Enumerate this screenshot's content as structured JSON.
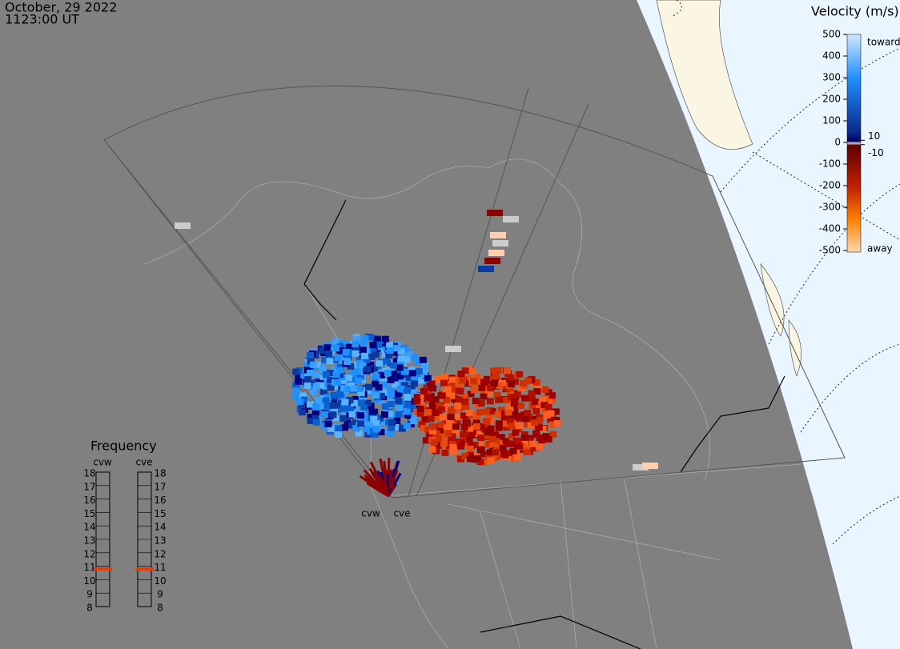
{
  "header": {
    "date": "October, 29 2022",
    "time": "1123:00 UT"
  },
  "velocity_scale": {
    "title": "Velocity (m/s)",
    "ticks": [
      500,
      400,
      300,
      200,
      100,
      0,
      -100,
      -200,
      -300,
      -400,
      -500
    ],
    "inner_ticks": [
      10,
      -10
    ],
    "toward_label": "toward",
    "away_label": "away"
  },
  "frequency_panel": {
    "title": "Frequency",
    "ticks": [
      18,
      17,
      16,
      15,
      14,
      13,
      12,
      11,
      10,
      9,
      8
    ],
    "radars": [
      {
        "name": "cvw",
        "frequency": 10.8
      },
      {
        "name": "cve",
        "frequency": 10.8
      }
    ]
  },
  "radar_sites": [
    "cvw",
    "cve"
  ]
}
